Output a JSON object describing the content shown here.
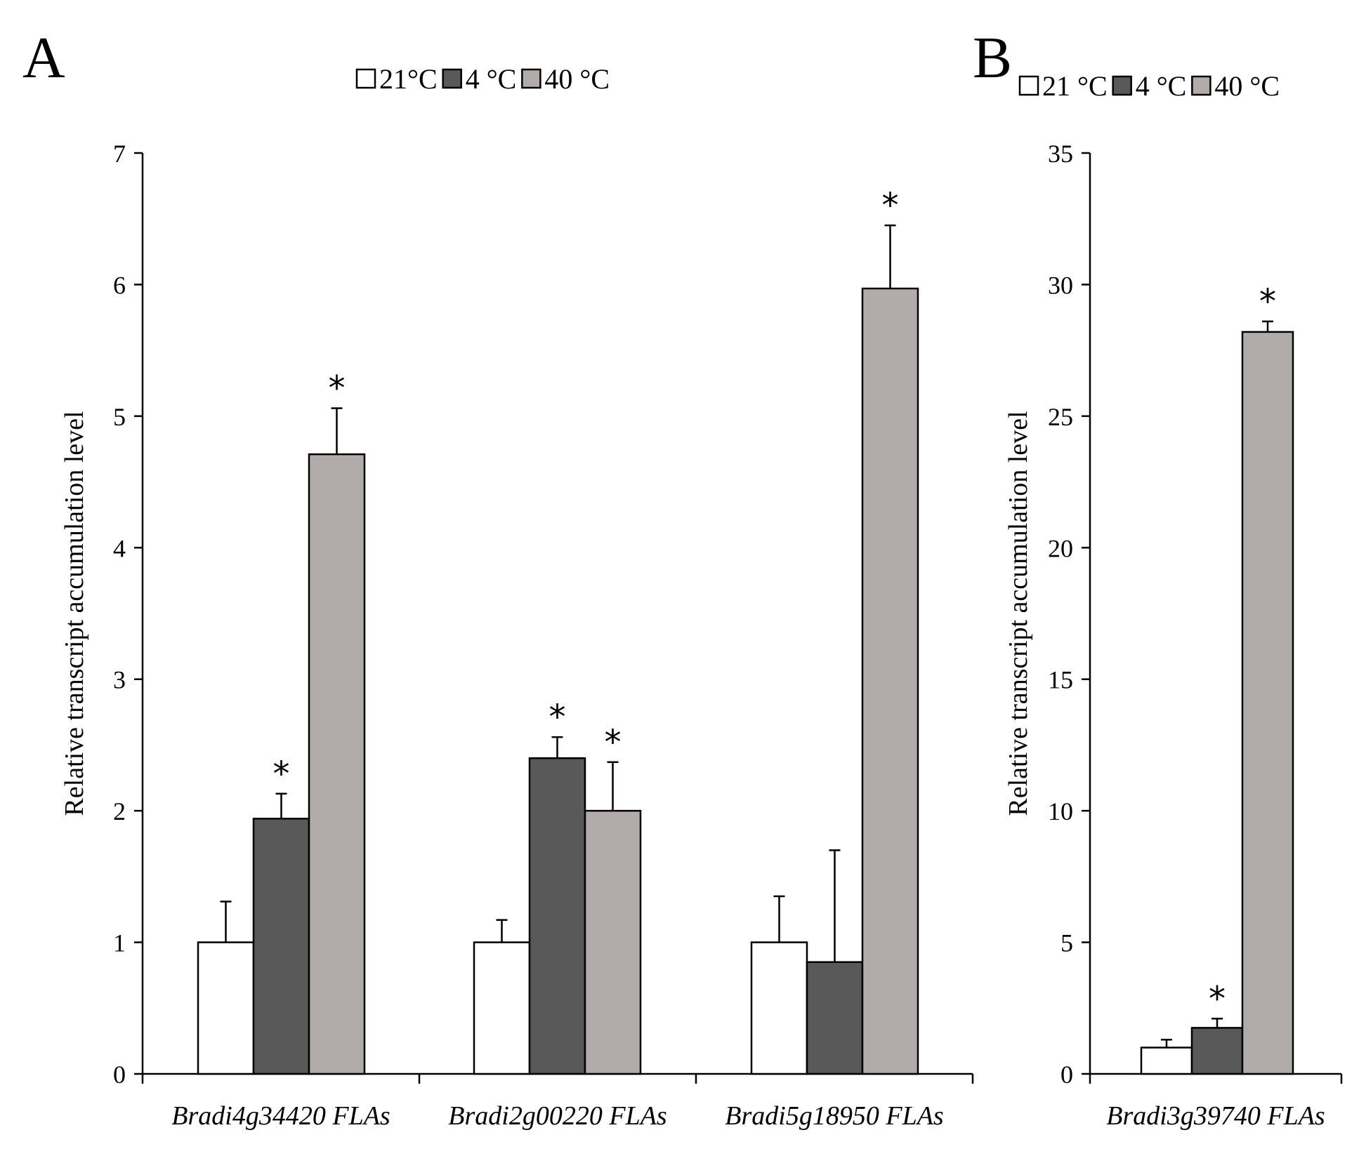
{
  "chart_data": [
    {
      "type": "bar",
      "panel": "A",
      "title": "",
      "xlabel": "",
      "ylabel": "Relative transcript accumulation level",
      "ylim": [
        0,
        7
      ],
      "yticks": [
        0,
        1,
        2,
        3,
        4,
        5,
        6,
        7
      ],
      "categories": [
        "Bradi4g34420 FLAs",
        "Bradi2g00220 FLAs",
        "Bradi5g18950 FLAs"
      ],
      "legend": {
        "position": "top",
        "entries": [
          "21°C",
          "4 °C",
          "40 °C"
        ]
      },
      "series": [
        {
          "name": "21°C",
          "color": "#ffffff",
          "values": [
            1.0,
            1.0,
            1.0
          ],
          "errors": [
            0.31,
            0.17,
            0.35
          ],
          "significant": [
            false,
            false,
            false
          ]
        },
        {
          "name": "4 °C",
          "color": "#595959",
          "values": [
            1.94,
            2.4,
            0.85
          ],
          "errors": [
            0.19,
            0.16,
            0.85
          ],
          "significant": [
            true,
            true,
            false
          ]
        },
        {
          "name": "40 °C",
          "color": "#b1acaa",
          "values": [
            4.71,
            2.0,
            5.97
          ],
          "errors": [
            0.35,
            0.37,
            0.48
          ],
          "significant": [
            true,
            true,
            true
          ]
        }
      ],
      "significance_marker": "*"
    },
    {
      "type": "bar",
      "panel": "B",
      "title": "",
      "xlabel": "",
      "ylabel": "Relative transcript accumulation level",
      "ylim": [
        0,
        35
      ],
      "yticks": [
        0,
        5,
        10,
        15,
        20,
        25,
        30,
        35
      ],
      "categories": [
        "Bradi3g39740 FLAs"
      ],
      "legend": {
        "position": "top",
        "entries": [
          "21 °C",
          "4 °C",
          "40 °C"
        ]
      },
      "series": [
        {
          "name": "21 °C",
          "color": "#ffffff",
          "values": [
            1.0
          ],
          "errors": [
            0.3
          ],
          "significant": [
            false
          ]
        },
        {
          "name": "4 °C",
          "color": "#595959",
          "values": [
            1.75
          ],
          "errors": [
            0.35
          ],
          "significant": [
            true
          ]
        },
        {
          "name": "40 °C",
          "color": "#b1acaa",
          "values": [
            28.2
          ],
          "errors": [
            0.4
          ],
          "significant": [
            true
          ]
        }
      ],
      "significance_marker": "*"
    }
  ]
}
